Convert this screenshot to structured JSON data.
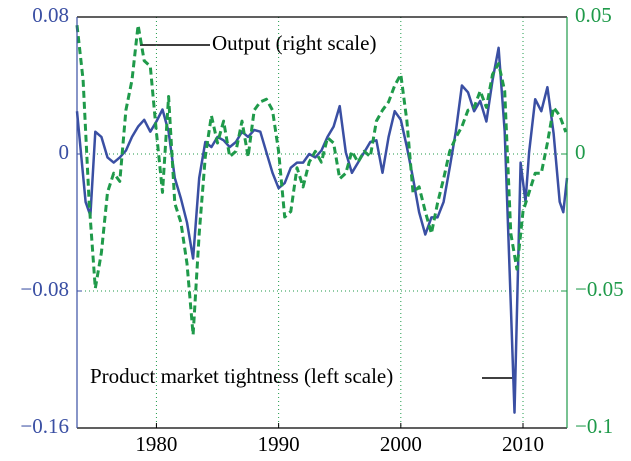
{
  "chart_data": {
    "type": "line",
    "annotations": [
      "Output (right scale)",
      "Product market tightness (left scale)"
    ],
    "xlim": [
      1973.5,
      2013.6
    ],
    "xticks": [
      1980,
      1990,
      2000,
      2010
    ],
    "ylim": [
      -0.16,
      0.08
    ],
    "yticks": [
      {
        "value": -0.16,
        "label": "−0.16"
      },
      {
        "value": -0.08,
        "label": "−0.08"
      },
      0,
      0.08
    ],
    "y2lim": [
      -0.1,
      0.05
    ],
    "y2ticks": [
      {
        "value": -0.1,
        "label": "−0.1"
      },
      {
        "value": -0.05,
        "label": "−0.05"
      },
      0,
      0.05
    ],
    "grid": true,
    "series": [
      {
        "color": "#3a4fa3",
        "axis": "y",
        "dash": false,
        "x": [
          1973.5,
          1974.2,
          1974.6,
          1975,
          1975.5,
          1976,
          1976.5,
          1977,
          1977.5,
          1978,
          1978.5,
          1979,
          1979.5,
          1980,
          1980.5,
          1981,
          1981.5,
          1982,
          1982.5,
          1983,
          1983.5,
          1984,
          1984.5,
          1985,
          1985.5,
          1986,
          1986.5,
          1987,
          1987.5,
          1988,
          1988.5,
          1989,
          1989.5,
          1990,
          1990.5,
          1991,
          1991.5,
          1992,
          1992.5,
          1993,
          1993.5,
          1994,
          1994.5,
          1995,
          1995.5,
          1996,
          1996.5,
          1997,
          1997.5,
          1998,
          1998.5,
          1999,
          1999.5,
          2000,
          2000.5,
          2001,
          2001.5,
          2002,
          2002.5,
          2003,
          2003.5,
          2004,
          2004.5,
          2005,
          2005.5,
          2006,
          2006.5,
          2007,
          2007.5,
          2008,
          2008.5,
          2009,
          2009.3,
          2009.8,
          2010.2,
          2010.5,
          2011,
          2011.5,
          2012,
          2012.5,
          2013,
          2013.3,
          2013.6
        ],
        "values": [
          0.025,
          -0.028,
          -0.036,
          0.013,
          0.01,
          -0.002,
          -0.005,
          -0.002,
          0.002,
          0.01,
          0.016,
          0.02,
          0.013,
          0.019,
          0.026,
          0.013,
          -0.014,
          -0.026,
          -0.04,
          -0.061,
          -0.014,
          0.007,
          0.004,
          0.01,
          0.008,
          0.004,
          0.007,
          0.013,
          0.01,
          0.014,
          0.013,
          0.001,
          -0.011,
          -0.02,
          -0.017,
          -0.008,
          -0.005,
          -0.005,
          0,
          -0.002,
          0.002,
          0.01,
          0.016,
          0.028,
          0.001,
          -0.011,
          -0.005,
          0.001,
          0.007,
          0.008,
          -0.011,
          0.01,
          0.025,
          0.02,
          0.004,
          -0.014,
          -0.034,
          -0.047,
          -0.037,
          -0.037,
          -0.028,
          -0.008,
          0.013,
          0.04,
          0.036,
          0.025,
          0.031,
          0.019,
          0.043,
          0.062,
          0.013,
          -0.088,
          -0.151,
          -0.005,
          -0.028,
          0.001,
          0.032,
          0.025,
          0.039,
          0.012,
          -0.028,
          -0.034,
          -0.014
        ]
      },
      {
        "color": "#1f9a4a",
        "axis": "y2",
        "dash": true,
        "x": [
          1973.5,
          1974,
          1974.5,
          1975,
          1975.5,
          1976,
          1976.5,
          1977,
          1977.5,
          1978,
          1978.5,
          1979,
          1979.5,
          1980,
          1980.5,
          1981,
          1981.5,
          1982,
          1982.5,
          1983,
          1983.5,
          1984,
          1984.5,
          1985,
          1985.5,
          1986,
          1986.5,
          1987,
          1987.5,
          1988,
          1988.5,
          1989,
          1989.5,
          1990,
          1990.5,
          1991,
          1991.5,
          1992,
          1992.5,
          1993,
          1993.5,
          1994,
          1994.5,
          1995,
          1995.5,
          1996,
          1996.5,
          1997,
          1997.5,
          1998,
          1998.5,
          1999,
          1999.5,
          2000,
          2000.5,
          2001,
          2001.5,
          2002,
          2002.5,
          2003,
          2003.5,
          2004,
          2004.5,
          2005,
          2005.5,
          2006,
          2006.5,
          2007,
          2007.5,
          2008,
          2008.5,
          2009,
          2009.5,
          2010,
          2010.5,
          2011,
          2011.5,
          2012,
          2012.5,
          2013,
          2013.5
        ],
        "values": [
          0.047,
          0.027,
          -0.018,
          -0.049,
          -0.036,
          -0.014,
          -0.007,
          -0.01,
          0.016,
          0.027,
          0.047,
          0.034,
          0.032,
          0.008,
          -0.014,
          0.021,
          -0.018,
          -0.025,
          -0.04,
          -0.066,
          -0.029,
          -0.001,
          0.014,
          0.004,
          0.012,
          -0.001,
          0.001,
          0.012,
          -0.001,
          0.016,
          0.019,
          0.02,
          0.016,
          0.001,
          -0.023,
          -0.021,
          -0.005,
          -0.012,
          -0.003,
          0.001,
          -0.003,
          0.006,
          0.004,
          -0.009,
          -0.007,
          0.001,
          -0.003,
          0.001,
          -0.001,
          0.012,
          0.016,
          0.019,
          0.025,
          0.029,
          0.012,
          -0.014,
          -0.012,
          -0.021,
          -0.029,
          -0.018,
          -0.009,
          0.001,
          0.006,
          0.01,
          0.016,
          0.017,
          0.023,
          0.017,
          0.029,
          0.033,
          0.023,
          -0.029,
          -0.042,
          -0.021,
          -0.014,
          -0.007,
          -0.007,
          0.004,
          0.017,
          0.014,
          0.008
        ]
      }
    ]
  }
}
